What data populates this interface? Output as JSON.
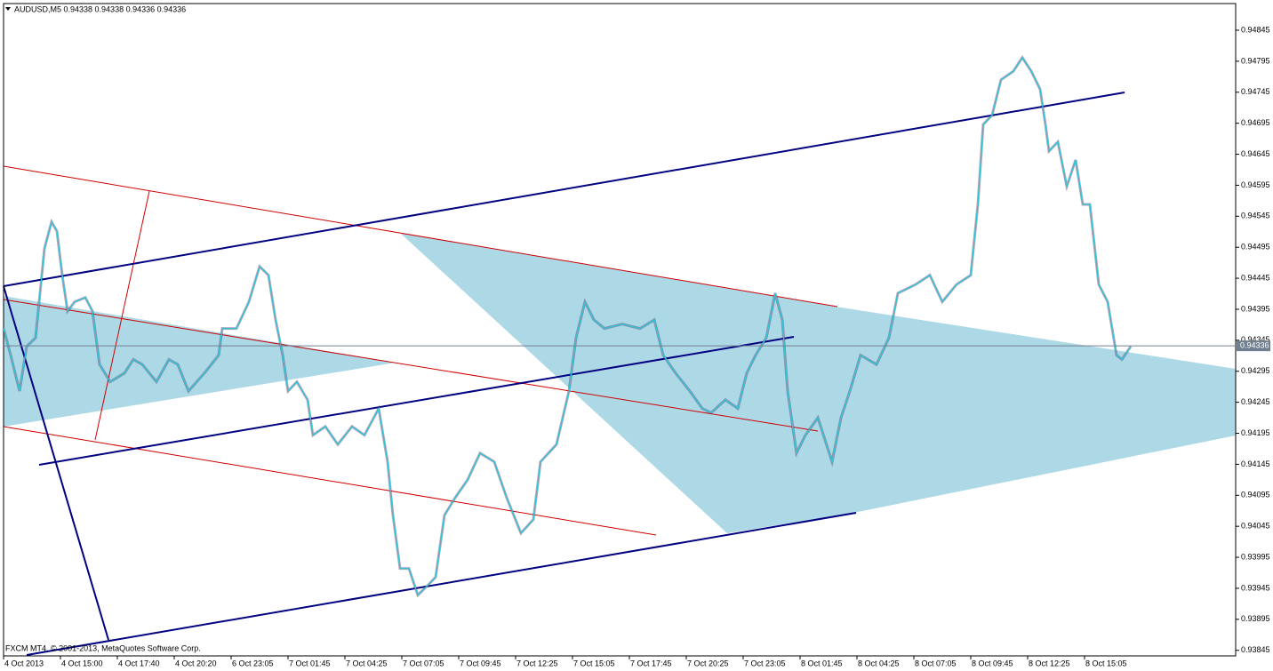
{
  "chart_data": {
    "type": "line",
    "title": "AUDUSD,M5  0.94338 0.94338 0.94336 0.94336",
    "footer": "FXCM MT4, © 2001-2013, MetaQuotes Software Corp.",
    "current_price": 0.94336,
    "x": [
      0,
      4,
      9,
      13,
      18,
      23,
      27,
      30,
      33,
      36,
      40,
      46,
      50,
      54,
      60,
      68,
      73,
      78,
      86,
      93,
      98,
      104,
      113,
      121,
      123,
      131,
      138,
      144,
      149,
      153,
      157,
      160,
      165,
      171,
      174,
      181,
      188,
      196,
      203,
      211,
      216,
      219,
      223,
      228,
      233,
      238,
      243,
      248,
      254,
      261,
      268,
      276,
      283,
      291,
      298,
      302,
      311,
      318,
      322,
      327,
      332,
      338,
      348,
      358,
      366,
      371,
      378,
      386,
      393,
      398,
      406,
      413,
      418,
      423,
      429,
      434,
      438,
      441,
      446,
      451,
      458,
      466,
      471,
      476,
      482,
      491,
      498,
      503,
      513,
      521,
      528,
      536,
      544,
      548,
      551,
      556,
      561,
      568,
      573,
      578,
      583,
      586,
      588,
      593,
      598,
      603,
      607,
      611,
      616,
      621,
      626,
      629,
      634
    ],
    "series": [
      {
        "color": "#33c3d6",
        "values": [
          0.94364,
          0.94321,
          0.94263,
          0.94335,
          0.94349,
          0.94493,
          0.94536,
          0.94521,
          0.9445,
          0.94392,
          0.94407,
          0.94414,
          0.94392,
          0.94306,
          0.94278,
          0.94292,
          0.94314,
          0.94306,
          0.94278,
          0.94314,
          0.94306,
          0.94263,
          0.94292,
          0.94321,
          0.94364,
          0.94364,
          0.94407,
          0.94464,
          0.9445,
          0.94378,
          0.94321,
          0.94263,
          0.94278,
          0.94249,
          0.94192,
          0.94206,
          0.94177,
          0.94206,
          0.94192,
          0.94235,
          0.94149,
          0.94063,
          0.93977,
          0.93977,
          0.93934,
          0.93948,
          0.93963,
          0.94063,
          0.94091,
          0.9412,
          0.94163,
          0.94149,
          0.94091,
          0.94034,
          0.94056,
          0.94149,
          0.94177,
          0.94263,
          0.94349,
          0.94407,
          0.94378,
          0.94364,
          0.94371,
          0.94364,
          0.94378,
          0.94321,
          0.94292,
          0.94263,
          0.94235,
          0.94228,
          0.94249,
          0.94235,
          0.94292,
          0.94321,
          0.94349,
          0.94421,
          0.94378,
          0.94263,
          0.94163,
          0.94192,
          0.9422,
          0.94149,
          0.9422,
          0.94263,
          0.94321,
          0.94306,
          0.94349,
          0.94421,
          0.94435,
          0.9445,
          0.94407,
          0.94435,
          0.9445,
          0.94564,
          0.94693,
          0.94708,
          0.94765,
          0.94779,
          0.94801,
          0.94779,
          0.9475,
          0.94693,
          0.9465,
          0.94665,
          0.94593,
          0.94636,
          0.94564,
          0.94564,
          0.94435,
          0.94407,
          0.94321,
          0.94314,
          0.94335
        ]
      }
    ],
    "xlim": [
      0,
      693
    ],
    "xticks": [
      {
        "value": 0,
        "label": "4 Oct 2013"
      },
      {
        "value": 32,
        "label": "4 Oct 15:00"
      },
      {
        "value": 64,
        "label": "4 Oct 17:40"
      },
      {
        "value": 96,
        "label": "4 Oct 20:20"
      },
      {
        "value": 128,
        "label": "6 Oct 23:05"
      },
      {
        "value": 160,
        "label": "7 Oct 01:45"
      },
      {
        "value": 192,
        "label": "7 Oct 04:25"
      },
      {
        "value": 224,
        "label": "7 Oct 07:05"
      },
      {
        "value": 256,
        "label": "7 Oct 09:45"
      },
      {
        "value": 288,
        "label": "7 Oct 12:25"
      },
      {
        "value": 320,
        "label": "7 Oct 15:05"
      },
      {
        "value": 352,
        "label": "7 Oct 17:45"
      },
      {
        "value": 384,
        "label": "7 Oct 20:25"
      },
      {
        "value": 416,
        "label": "7 Oct 23:05"
      },
      {
        "value": 448,
        "label": "8 Oct 01:45"
      },
      {
        "value": 480,
        "label": "8 Oct 04:25"
      },
      {
        "value": 512,
        "label": "8 Oct 07:05"
      },
      {
        "value": 544,
        "label": "8 Oct 09:45"
      },
      {
        "value": 576,
        "label": "8 Oct 12:25"
      },
      {
        "value": 608,
        "label": "8 Oct 15:05"
      }
    ],
    "ylim": [
      0.93836,
      0.94888
    ],
    "yticks": [
      0.94845,
      0.94795,
      0.94745,
      0.94695,
      0.94645,
      0.94595,
      0.94545,
      0.94495,
      0.94445,
      0.94395,
      0.94345,
      0.94295,
      0.94245,
      0.94195,
      0.94145,
      0.94095,
      0.94045,
      0.93995,
      0.93945,
      0.93895,
      0.93845
    ]
  }
}
